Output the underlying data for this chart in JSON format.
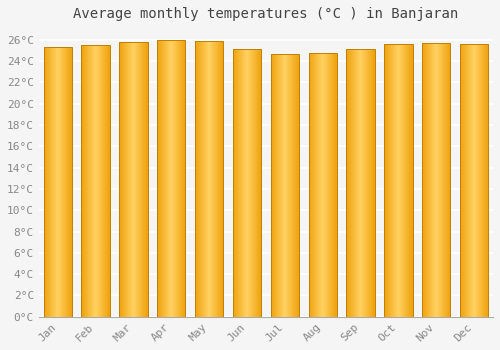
{
  "title": "Average monthly temperatures (°C ) in Banjaran",
  "months": [
    "Jan",
    "Feb",
    "Mar",
    "Apr",
    "May",
    "Jun",
    "Jul",
    "Aug",
    "Sep",
    "Oct",
    "Nov",
    "Dec"
  ],
  "values": [
    25.3,
    25.5,
    25.8,
    26.0,
    25.9,
    25.1,
    24.7,
    24.8,
    25.1,
    25.6,
    25.7,
    25.6
  ],
  "bar_color_center": "#FFD060",
  "bar_color_edge": "#F0A000",
  "bar_outline_color": "#C08000",
  "background_color": "#F5F5F5",
  "grid_color": "#FFFFFF",
  "ylim": [
    0,
    27
  ],
  "ytick_step": 2,
  "title_fontsize": 10,
  "tick_fontsize": 8,
  "tick_font_family": "monospace"
}
